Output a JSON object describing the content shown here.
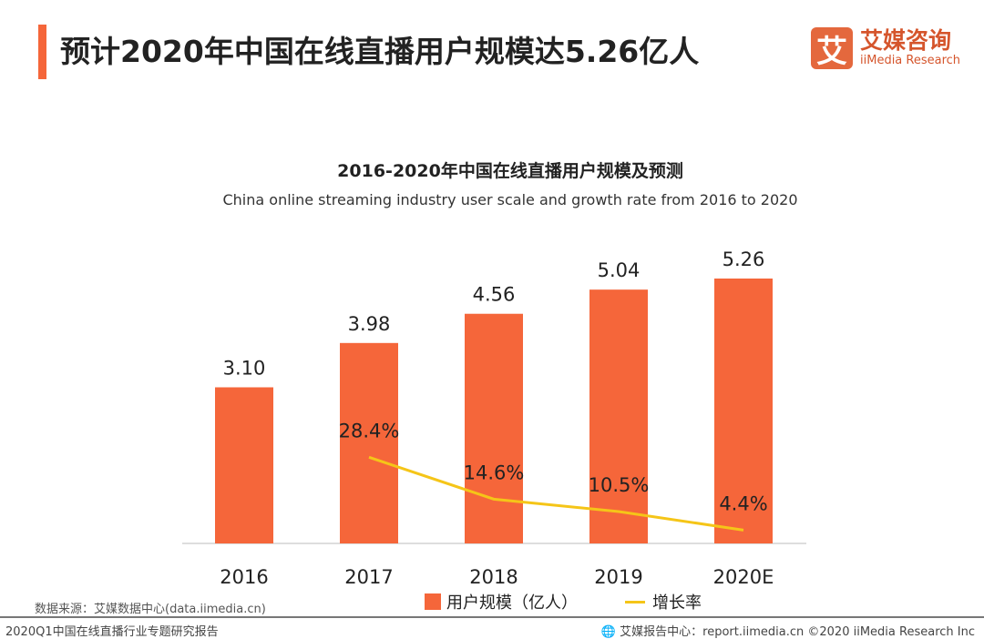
{
  "header": {
    "title": "预计2020年中国在线直播用户规模达5.26亿人",
    "logo_mark": "艾",
    "logo_cn": "艾媒咨询",
    "logo_en": "iiMedia Research"
  },
  "chart_data": {
    "type": "bar",
    "title": "2016-2020年中国在线直播用户规模及预测",
    "subtitle": "China online streaming industry user scale and growth rate from 2016 to 2020",
    "categories": [
      "2016",
      "2017",
      "2018",
      "2019",
      "2020E"
    ],
    "series": [
      {
        "name": "用户规模（亿人）",
        "type": "bar",
        "color": "#f5663a",
        "values": [
          3.1,
          3.98,
          4.56,
          5.04,
          5.26
        ],
        "labels": [
          "3.10",
          "3.98",
          "4.56",
          "5.04",
          "5.26"
        ]
      },
      {
        "name": "增长率",
        "type": "line",
        "color": "#f5c518",
        "values": [
          null,
          28.4,
          14.6,
          10.5,
          4.4
        ],
        "labels": [
          "",
          "28.4%",
          "14.6%",
          "10.5%",
          "4.4%"
        ]
      }
    ],
    "ylim": [
      0,
      5.26
    ],
    "y2lim": [
      0,
      28.4
    ],
    "grid": false,
    "legend": "bottom"
  },
  "footer": {
    "source": "数据来源：艾媒数据中心(data.iimedia.cn)",
    "report": "2020Q1中国在线直播行业专题研究报告",
    "site": "艾媒报告中心：report.iimedia.cn",
    "copyright": "©2020  iiMedia Research  Inc"
  }
}
